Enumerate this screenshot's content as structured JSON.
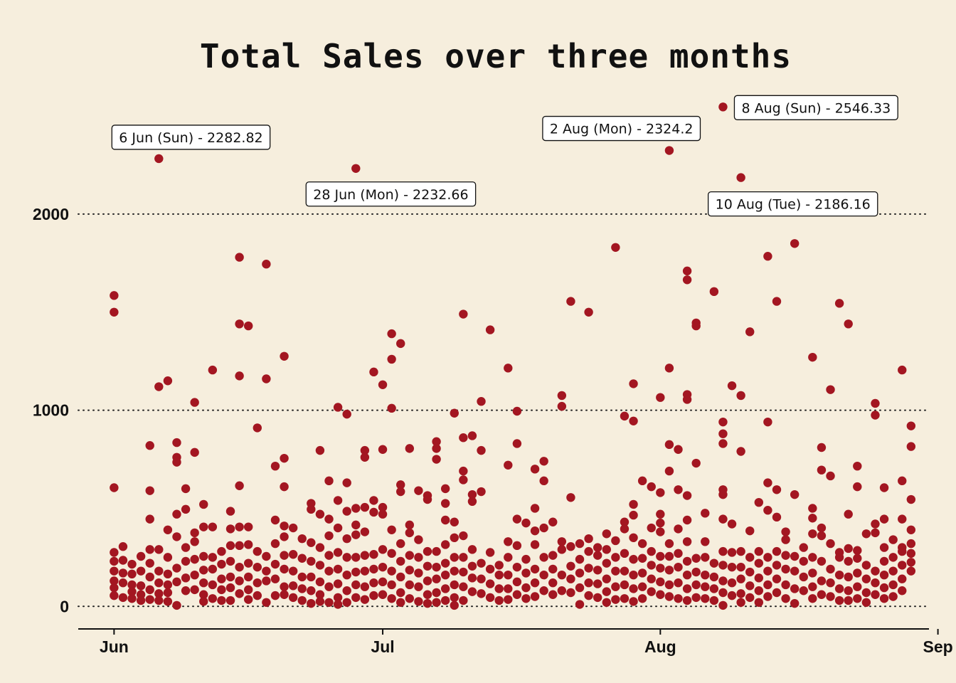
{
  "chart_data": {
    "type": "scatter",
    "title": "Total Sales over three months",
    "xlabel": "",
    "ylabel": "",
    "x_range": [
      "2021-05-28",
      "2021-08-31"
    ],
    "ylim": [
      -115,
      2620
    ],
    "x_ticks": [
      {
        "label": "Jun",
        "date": "2021-06-01"
      },
      {
        "label": "Jul",
        "date": "2021-07-01"
      },
      {
        "label": "Aug",
        "date": "2021-08-01"
      },
      {
        "label": "Sep",
        "date": "2021-09-01"
      }
    ],
    "y_ticks": [
      0,
      1000,
      2000
    ],
    "grid": "horizontal dotted",
    "marker_color": "#a31621",
    "annotations": [
      {
        "label": "6 Jun (Sun) - 2282.82",
        "date": "2021-06-06",
        "value": 2282.82
      },
      {
        "label": "28 Jun (Mon) - 2232.66",
        "date": "2021-06-28",
        "value": 2232.66
      },
      {
        "label": "2 Aug (Mon) - 2324.2",
        "date": "2021-08-02",
        "value": 2324.2
      },
      {
        "label": "8 Aug (Sun) - 2546.33",
        "date": "2021-08-08",
        "value": 2546.33
      },
      {
        "label": "10 Aug (Tue) - 2186.16",
        "date": "2021-08-10",
        "value": 2186.16
      }
    ],
    "points": [
      {
        "date": "2021-06-01",
        "values": [
          1585,
          1500,
          605,
          275,
          230,
          180,
          130,
          95,
          55
        ]
      },
      {
        "date": "2021-06-02",
        "values": [
          305,
          235,
          170,
          120,
          45
        ]
      },
      {
        "date": "2021-06-03",
        "values": [
          215,
          165,
          110,
          75,
          40
        ]
      },
      {
        "date": "2021-06-04",
        "values": [
          255,
          180,
          105,
          60,
          30
        ]
      },
      {
        "date": "2021-06-05",
        "values": [
          820,
          590,
          445,
          290,
          220,
          150,
          85,
          35
        ]
      },
      {
        "date": "2021-06-06",
        "values": [
          2282.82,
          1120,
          290,
          180,
          120,
          65,
          30
        ]
      },
      {
        "date": "2021-06-07",
        "values": [
          1150,
          390,
          250,
          165,
          110,
          70,
          25
        ]
      },
      {
        "date": "2021-06-08",
        "values": [
          835,
          760,
          735,
          470,
          355,
          195,
          125,
          5
        ]
      },
      {
        "date": "2021-06-09",
        "values": [
          600,
          495,
          300,
          230,
          145,
          80
        ]
      },
      {
        "date": "2021-06-10",
        "values": [
          1040,
          785,
          375,
          330,
          240,
          160,
          85
        ]
      },
      {
        "date": "2021-06-11",
        "values": [
          520,
          405,
          255,
          185,
          120,
          60,
          25
        ]
      },
      {
        "date": "2021-06-12",
        "values": [
          1205,
          405,
          250,
          190,
          110,
          40
        ]
      },
      {
        "date": "2021-06-13",
        "values": [
          280,
          215,
          140,
          85,
          30
        ]
      },
      {
        "date": "2021-06-14",
        "values": [
          485,
          395,
          310,
          230,
          150,
          95,
          30
        ]
      },
      {
        "date": "2021-06-15",
        "values": [
          1780,
          1440,
          1175,
          615,
          405,
          310,
          200,
          130,
          65
        ]
      },
      {
        "date": "2021-06-16",
        "values": [
          1430,
          405,
          315,
          220,
          150,
          85,
          35
        ]
      },
      {
        "date": "2021-06-17",
        "values": [
          910,
          280,
          200,
          120,
          55
        ]
      },
      {
        "date": "2021-06-18",
        "values": [
          1745,
          1160,
          255,
          180,
          130,
          20
        ]
      },
      {
        "date": "2021-06-19",
        "values": [
          715,
          440,
          320,
          215,
          140,
          55
        ]
      },
      {
        "date": "2021-06-20",
        "values": [
          1275,
          755,
          610,
          410,
          355,
          260,
          190,
          100,
          60
        ]
      },
      {
        "date": "2021-06-21",
        "values": [
          400,
          265,
          180,
          105,
          45
        ]
      },
      {
        "date": "2021-06-22",
        "values": [
          345,
          245,
          150,
          90,
          30
        ]
      },
      {
        "date": "2021-06-23",
        "values": [
          525,
          495,
          325,
          230,
          150,
          80,
          15
        ]
      },
      {
        "date": "2021-06-24",
        "values": [
          795,
          470,
          300,
          210,
          125,
          60,
          25
        ]
      },
      {
        "date": "2021-06-25",
        "values": [
          640,
          445,
          360,
          260,
          180,
          100,
          20
        ]
      },
      {
        "date": "2021-06-26",
        "values": [
          1015,
          540,
          400,
          275,
          190,
          115,
          45,
          10
        ]
      },
      {
        "date": "2021-06-27",
        "values": [
          980,
          630,
          485,
          345,
          250,
          160,
          80,
          20
        ]
      },
      {
        "date": "2021-06-28",
        "values": [
          2232.66,
          500,
          415,
          365,
          250,
          175,
          110,
          45
        ]
      },
      {
        "date": "2021-06-29",
        "values": [
          795,
          760,
          505,
          380,
          260,
          180,
          100,
          35
        ]
      },
      {
        "date": "2021-06-30",
        "values": [
          1195,
          540,
          480,
          265,
          190,
          120,
          55
        ]
      },
      {
        "date": "2021-07-01",
        "values": [
          1130,
          800,
          505,
          470,
          290,
          200,
          125,
          60
        ]
      },
      {
        "date": "2021-07-02",
        "values": [
          1390,
          1260,
          1010,
          390,
          270,
          180,
          110,
          40
        ]
      },
      {
        "date": "2021-07-03",
        "values": [
          1340,
          620,
          585,
          320,
          230,
          150,
          70,
          20
        ]
      },
      {
        "date": "2021-07-04",
        "values": [
          805,
          415,
          375,
          260,
          185,
          110,
          40
        ]
      },
      {
        "date": "2021-07-05",
        "values": [
          590,
          340,
          250,
          170,
          100,
          25
        ]
      },
      {
        "date": "2021-07-06",
        "values": [
          565,
          545,
          280,
          205,
          130,
          60,
          15
        ]
      },
      {
        "date": "2021-07-07",
        "values": [
          840,
          805,
          750,
          280,
          200,
          140,
          70,
          20
        ]
      },
      {
        "date": "2021-07-08",
        "values": [
          600,
          525,
          440,
          315,
          220,
          160,
          90,
          30
        ]
      },
      {
        "date": "2021-07-09",
        "values": [
          985,
          430,
          350,
          250,
          180,
          110,
          45,
          5
        ]
      },
      {
        "date": "2021-07-10",
        "values": [
          1490,
          860,
          690,
          645,
          360,
          250,
          175,
          100,
          30
        ]
      },
      {
        "date": "2021-07-11",
        "values": [
          870,
          570,
          535,
          290,
          205,
          145,
          75
        ]
      },
      {
        "date": "2021-07-12",
        "values": [
          1045,
          795,
          585,
          220,
          140,
          65
        ]
      },
      {
        "date": "2021-07-13",
        "values": [
          1410,
          275,
          190,
          115,
          45
        ]
      },
      {
        "date": "2021-07-14",
        "values": [
          210,
          160,
          90,
          30
        ]
      },
      {
        "date": "2021-07-15",
        "values": [
          1215,
          720,
          330,
          250,
          160,
          90,
          35
        ]
      },
      {
        "date": "2021-07-16",
        "values": [
          995,
          830,
          445,
          310,
          200,
          125,
          60
        ]
      },
      {
        "date": "2021-07-17",
        "values": [
          425,
          240,
          170,
          95,
          40
        ]
      },
      {
        "date": "2021-07-18",
        "values": [
          700,
          500,
          385,
          315,
          190,
          120,
          50
        ]
      },
      {
        "date": "2021-07-19",
        "values": [
          740,
          640,
          400,
          250,
          160,
          80
        ]
      },
      {
        "date": "2021-07-20",
        "values": [
          430,
          260,
          190,
          120,
          60
        ]
      },
      {
        "date": "2021-07-21",
        "values": [
          1075,
          1020,
          330,
          290,
          160,
          80
        ]
      },
      {
        "date": "2021-07-22",
        "values": [
          1555,
          555,
          305,
          205,
          140,
          70
        ]
      },
      {
        "date": "2021-07-23",
        "values": [
          320,
          240,
          170,
          95,
          10
        ]
      },
      {
        "date": "2021-07-24",
        "values": [
          1500,
          345,
          280,
          195,
          120,
          55
        ]
      },
      {
        "date": "2021-07-25",
        "values": [
          300,
          260,
          185,
          115,
          45
        ]
      },
      {
        "date": "2021-07-26",
        "values": [
          370,
          290,
          220,
          140,
          75,
          20
        ]
      },
      {
        "date": "2021-07-27",
        "values": [
          1830,
          335,
          250,
          180,
          100,
          35
        ]
      },
      {
        "date": "2021-07-28",
        "values": [
          970,
          430,
          395,
          270,
          180,
          110,
          40
        ]
      },
      {
        "date": "2021-07-29",
        "values": [
          1135,
          945,
          520,
          465,
          350,
          240,
          160,
          90,
          25
        ]
      },
      {
        "date": "2021-07-30",
        "values": [
          640,
          320,
          245,
          170,
          100,
          40
        ]
      },
      {
        "date": "2021-07-31",
        "values": [
          610,
          400,
          280,
          210,
          140,
          75
        ]
      },
      {
        "date": "2021-08-01",
        "values": [
          1065,
          580,
          470,
          425,
          380,
          255,
          195,
          125,
          60
        ]
      },
      {
        "date": "2021-08-02",
        "values": [
          2324.2,
          1215,
          825,
          690,
          320,
          255,
          185,
          110,
          50
        ]
      },
      {
        "date": "2021-08-03",
        "values": [
          800,
          595,
          395,
          270,
          200,
          120,
          40
        ]
      },
      {
        "date": "2021-08-04",
        "values": [
          1710,
          1665,
          1080,
          1055,
          565,
          440,
          330,
          230,
          160,
          90,
          30
        ]
      },
      {
        "date": "2021-08-05",
        "values": [
          1445,
          1430,
          730,
          245,
          175,
          110,
          45
        ]
      },
      {
        "date": "2021-08-06",
        "values": [
          475,
          330,
          250,
          160,
          100,
          40
        ]
      },
      {
        "date": "2021-08-07",
        "values": [
          1605,
          220,
          150,
          90,
          30
        ]
      },
      {
        "date": "2021-08-08",
        "values": [
          2546.33,
          940,
          880,
          830,
          595,
          570,
          445,
          280,
          210,
          130,
          70,
          5
        ]
      },
      {
        "date": "2021-08-09",
        "values": [
          1125,
          420,
          275,
          200,
          120,
          55
        ]
      },
      {
        "date": "2021-08-10",
        "values": [
          2186.16,
          1075,
          790,
          280,
          200,
          140,
          65,
          20
        ]
      },
      {
        "date": "2021-08-11",
        "values": [
          1400,
          385,
          250,
          175,
          105,
          45
        ]
      },
      {
        "date": "2021-08-12",
        "values": [
          530,
          280,
          220,
          145,
          80,
          20
        ]
      },
      {
        "date": "2021-08-13",
        "values": [
          1785,
          940,
          630,
          490,
          250,
          180,
          110,
          50
        ]
      },
      {
        "date": "2021-08-14",
        "values": [
          1555,
          595,
          455,
          280,
          210,
          140,
          70
        ]
      },
      {
        "date": "2021-08-15",
        "values": [
          380,
          340,
          260,
          190,
          110,
          40
        ]
      },
      {
        "date": "2021-08-16",
        "values": [
          1850,
          570,
          255,
          180,
          90,
          15
        ]
      },
      {
        "date": "2021-08-17",
        "values": [
          300,
          230,
          150,
          80
        ]
      },
      {
        "date": "2021-08-18",
        "values": [
          1270,
          500,
          450,
          370,
          250,
          170,
          100,
          40
        ]
      },
      {
        "date": "2021-08-19",
        "values": [
          810,
          695,
          400,
          360,
          230,
          130,
          60
        ]
      },
      {
        "date": "2021-08-20",
        "values": [
          1105,
          665,
          320,
          190,
          120,
          50
        ]
      },
      {
        "date": "2021-08-21",
        "values": [
          1545,
          275,
          250,
          160,
          90,
          30
        ]
      },
      {
        "date": "2021-08-22",
        "values": [
          1440,
          470,
          295,
          230,
          150,
          80,
          30
        ]
      },
      {
        "date": "2021-08-23",
        "values": [
          715,
          610,
          285,
          245,
          170,
          100,
          40
        ]
      },
      {
        "date": "2021-08-24",
        "values": [
          370,
          210,
          140,
          70,
          20
        ]
      },
      {
        "date": "2021-08-25",
        "values": [
          1035,
          975,
          420,
          375,
          180,
          120,
          60
        ]
      },
      {
        "date": "2021-08-26",
        "values": [
          605,
          445,
          300,
          230,
          160,
          95,
          40
        ]
      },
      {
        "date": "2021-08-27",
        "values": [
          340,
          250,
          180,
          110,
          50
        ]
      },
      {
        "date": "2021-08-28",
        "values": [
          1205,
          640,
          445,
          300,
          280,
          210,
          140,
          80
        ]
      },
      {
        "date": "2021-08-29",
        "values": [
          920,
          815,
          545,
          390,
          320,
          270,
          225,
          180
        ]
      }
    ]
  }
}
